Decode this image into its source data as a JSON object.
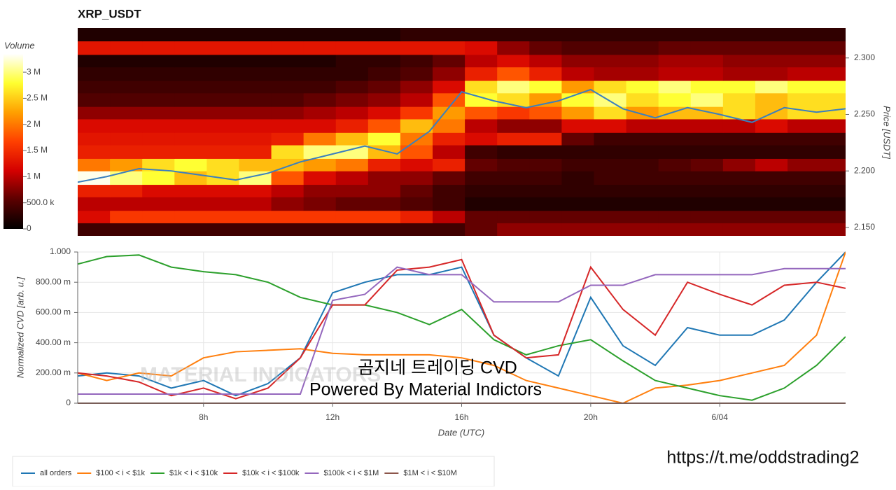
{
  "chart_data": [
    {
      "type": "heatmap",
      "title": "XRP_USDT",
      "y_label": "Price [USDT]",
      "colorbar_label": "Volume",
      "x": [
        4.6,
        5.6,
        6.6,
        7.6,
        8.6,
        9.6,
        10.6,
        11.6,
        12.6,
        13.6,
        14.6,
        15.6,
        16.6,
        17.6,
        18.6,
        19.6,
        20.6,
        21.6,
        22.6,
        23.6,
        24.6,
        25.6,
        26.6,
        27.6
      ],
      "y": [
        2.148,
        2.16,
        2.171,
        2.183,
        2.194,
        2.206,
        2.217,
        2.229,
        2.24,
        2.252,
        2.263,
        2.275,
        2.286,
        2.298,
        2.309,
        2.321
      ],
      "z": [
        [
          400000,
          400000,
          400000,
          400000,
          400000,
          400000,
          400000,
          400000,
          400000,
          400000,
          400000,
          400000,
          600000,
          800000,
          800000,
          800000,
          800000,
          800000,
          800000,
          800000,
          800000,
          800000,
          800000,
          800000
        ],
        [
          1200000,
          1600000,
          1600000,
          1600000,
          1600000,
          1600000,
          1600000,
          1600000,
          1600000,
          1600000,
          1400000,
          1000000,
          600000,
          600000,
          600000,
          600000,
          600000,
          600000,
          600000,
          600000,
          600000,
          600000,
          600000,
          600000
        ],
        [
          1000000,
          1000000,
          1000000,
          1000000,
          1000000,
          1000000,
          800000,
          700000,
          600000,
          600000,
          500000,
          400000,
          200000,
          200000,
          200000,
          200000,
          200000,
          200000,
          200000,
          200000,
          200000,
          200000,
          200000,
          200000
        ],
        [
          1400000,
          1400000,
          1200000,
          1200000,
          1200000,
          1200000,
          1000000,
          800000,
          800000,
          800000,
          600000,
          400000,
          300000,
          300000,
          300000,
          300000,
          300000,
          300000,
          300000,
          300000,
          300000,
          300000,
          300000,
          300000
        ],
        [
          3300000,
          3000000,
          2800000,
          2400000,
          2600000,
          3000000,
          1800000,
          1200000,
          1000000,
          800000,
          800000,
          600000,
          400000,
          400000,
          400000,
          300000,
          400000,
          400000,
          400000,
          400000,
          400000,
          400000,
          400000,
          400000
        ],
        [
          2000000,
          2200000,
          2600000,
          2800000,
          2600000,
          2400000,
          2400000,
          2200000,
          2000000,
          1400000,
          1200000,
          1400000,
          600000,
          500000,
          500000,
          400000,
          400000,
          400000,
          500000,
          600000,
          800000,
          1000000,
          800000,
          800000
        ],
        [
          1400000,
          1400000,
          1400000,
          1400000,
          1400000,
          1400000,
          2600000,
          3000000,
          3000000,
          2400000,
          1800000,
          1000000,
          400000,
          300000,
          300000,
          300000,
          300000,
          300000,
          300000,
          300000,
          300000,
          300000,
          300000,
          300000
        ],
        [
          1300000,
          1300000,
          1300000,
          1300000,
          1300000,
          1300000,
          1400000,
          2000000,
          2400000,
          2800000,
          2000000,
          1400000,
          1200000,
          1400000,
          1400000,
          600000,
          400000,
          400000,
          400000,
          400000,
          400000,
          400000,
          400000,
          400000
        ],
        [
          1200000,
          1200000,
          1200000,
          1200000,
          1200000,
          1200000,
          1200000,
          1200000,
          1400000,
          1800000,
          2400000,
          2000000,
          1000000,
          800000,
          800000,
          1200000,
          1200000,
          1000000,
          1000000,
          1000000,
          1000000,
          1200000,
          1000000,
          1000000
        ],
        [
          800000,
          800000,
          800000,
          800000,
          800000,
          800000,
          800000,
          900000,
          1000000,
          1200000,
          1600000,
          2200000,
          1800000,
          1600000,
          1800000,
          2200000,
          2600000,
          2200000,
          2400000,
          2400000,
          2600000,
          2400000,
          2600000,
          2600000
        ],
        [
          500000,
          500000,
          500000,
          500000,
          500000,
          500000,
          500000,
          600000,
          700000,
          800000,
          1000000,
          1800000,
          2800000,
          2600000,
          2200000,
          2800000,
          3000000,
          2600000,
          2800000,
          3000000,
          2600000,
          2400000,
          2600000,
          2600000
        ],
        [
          400000,
          400000,
          400000,
          400000,
          400000,
          400000,
          400000,
          400000,
          500000,
          600000,
          800000,
          1200000,
          2600000,
          3000000,
          2800000,
          2200000,
          2600000,
          2800000,
          3000000,
          2800000,
          2800000,
          3000000,
          2800000,
          2800000
        ],
        [
          300000,
          300000,
          300000,
          300000,
          300000,
          300000,
          300000,
          300000,
          300000,
          400000,
          500000,
          800000,
          1400000,
          1800000,
          1400000,
          1000000,
          900000,
          900000,
          1000000,
          1000000,
          900000,
          900000,
          1000000,
          1000000
        ],
        [
          200000,
          200000,
          200000,
          200000,
          200000,
          200000,
          200000,
          200000,
          300000,
          300000,
          400000,
          600000,
          1000000,
          1200000,
          1000000,
          800000,
          800000,
          800000,
          900000,
          900000,
          800000,
          800000,
          800000,
          800000
        ],
        [
          1300000,
          1300000,
          1300000,
          1300000,
          1300000,
          1300000,
          1300000,
          1300000,
          1300000,
          1300000,
          1300000,
          1300000,
          1200000,
          800000,
          600000,
          500000,
          500000,
          500000,
          600000,
          600000,
          600000,
          600000,
          600000,
          600000
        ],
        [
          200000,
          200000,
          200000,
          200000,
          200000,
          200000,
          200000,
          200000,
          200000,
          200000,
          300000,
          300000,
          300000,
          300000,
          300000,
          300000,
          300000,
          300000,
          300000,
          300000,
          300000,
          300000,
          300000,
          300000
        ]
      ],
      "xlim": [
        4.1,
        27.9
      ],
      "ylim": [
        2.1425,
        2.3265
      ],
      "yticks": [
        {
          "value": 2.15,
          "label": "2.150"
        },
        {
          "value": 2.2,
          "label": "2.200"
        },
        {
          "value": 2.25,
          "label": "2.250"
        },
        {
          "value": 2.3,
          "label": "2.300"
        }
      ],
      "zlim": [
        0,
        3350000
      ],
      "zticks": [
        0,
        {
          "value": 500000,
          "label": "500.0 k"
        },
        {
          "value": 1000000,
          "label": "1 M"
        },
        {
          "value": 1500000,
          "label": "1.5 M"
        },
        {
          "value": 2000000,
          "label": "2 M"
        },
        {
          "value": 2500000,
          "label": "2.5 M"
        },
        {
          "value": 3000000,
          "label": "3 M"
        }
      ],
      "colormap": [
        "#000000",
        "#5a0000",
        "#d40000",
        "#ff4000",
        "#ffa000",
        "#ffff30",
        "#ffffff"
      ],
      "price_line": {
        "color": "#3a7fbf",
        "x": [
          4.1,
          5,
          6,
          7,
          8,
          9,
          10,
          11,
          12,
          13,
          14,
          15,
          16,
          17,
          18,
          19,
          20,
          21,
          22,
          23,
          24,
          25,
          26,
          27,
          27.9
        ],
        "values": [
          2.19,
          2.195,
          2.202,
          2.2,
          2.196,
          2.192,
          2.198,
          2.208,
          2.215,
          2.222,
          2.215,
          2.235,
          2.27,
          2.262,
          2.256,
          2.262,
          2.272,
          2.255,
          2.247,
          2.256,
          2.25,
          2.243,
          2.256,
          2.252,
          2.255
        ]
      }
    },
    {
      "type": "line",
      "x_label": "Date (UTC)",
      "y_label": "Normalized CVD [arb. u.]",
      "x": [
        4.1,
        5,
        6,
        7,
        8,
        9,
        10,
        11,
        12,
        13,
        14,
        15,
        16,
        17,
        18,
        19,
        20,
        21,
        22,
        23,
        24,
        25,
        26,
        27,
        27.9
      ],
      "series": [
        {
          "name": "all orders",
          "color": "#1f77b4",
          "values": [
            0.18,
            0.2,
            0.18,
            0.1,
            0.15,
            0.05,
            0.13,
            0.3,
            0.73,
            0.8,
            0.85,
            0.85,
            0.9,
            0.45,
            0.3,
            0.18,
            0.7,
            0.38,
            0.25,
            0.5,
            0.45,
            0.45,
            0.55,
            0.8,
            1.0
          ]
        },
        {
          "name": "$100 < i < $1k",
          "color": "#ff7f0e",
          "values": [
            0.2,
            0.15,
            0.2,
            0.18,
            0.3,
            0.34,
            0.35,
            0.36,
            0.33,
            0.32,
            0.32,
            0.32,
            0.3,
            0.25,
            0.15,
            0.1,
            0.05,
            0.0,
            0.1,
            0.12,
            0.15,
            0.2,
            0.25,
            0.45,
            1.0
          ]
        },
        {
          "name": "$1k < i < $10k",
          "color": "#2ca02c",
          "values": [
            0.92,
            0.97,
            0.98,
            0.9,
            0.87,
            0.85,
            0.8,
            0.7,
            0.65,
            0.65,
            0.6,
            0.52,
            0.62,
            0.42,
            0.32,
            0.38,
            0.42,
            0.28,
            0.15,
            0.1,
            0.05,
            0.02,
            0.1,
            0.25,
            0.44
          ]
        },
        {
          "name": "$10k < i < $100k",
          "color": "#d62728",
          "values": [
            0.2,
            0.18,
            0.14,
            0.05,
            0.1,
            0.03,
            0.1,
            0.3,
            0.65,
            0.65,
            0.88,
            0.9,
            0.95,
            0.45,
            0.3,
            0.32,
            0.9,
            0.62,
            0.45,
            0.8,
            0.72,
            0.65,
            0.78,
            0.8,
            0.76
          ]
        },
        {
          "name": "$100k < i < $1M",
          "color": "#9467bd",
          "values": [
            0.06,
            0.06,
            0.06,
            0.06,
            0.06,
            0.06,
            0.06,
            0.06,
            0.68,
            0.72,
            0.9,
            0.85,
            0.85,
            0.67,
            0.67,
            0.67,
            0.78,
            0.78,
            0.85,
            0.85,
            0.85,
            0.85,
            0.89,
            0.89,
            0.89
          ]
        },
        {
          "name": "$1M < i < $10M",
          "color": "#8c564b",
          "values": [
            0,
            0,
            0,
            0,
            0,
            0,
            0,
            0,
            0,
            0,
            0,
            0,
            0,
            0,
            0,
            0,
            0,
            0,
            0,
            0,
            0,
            0,
            0,
            0,
            0
          ]
        }
      ],
      "xlim": [
        4.1,
        27.9
      ],
      "xticks": [
        {
          "value": 8,
          "label": "8h"
        },
        {
          "value": 12,
          "label": "12h"
        },
        {
          "value": 16,
          "label": "16h"
        },
        {
          "value": 20,
          "label": "20h"
        },
        {
          "value": 24,
          "label": "6/04"
        }
      ],
      "ylim": [
        0,
        1
      ],
      "yticks": [
        0,
        {
          "value": 0.2,
          "label": "200.00 m"
        },
        {
          "value": 0.4,
          "label": "400.00 m"
        },
        {
          "value": 0.6,
          "label": "600.00 m"
        },
        {
          "value": 0.8,
          "label": "800.00 m"
        },
        {
          "value": 1,
          "label": "1.000"
        }
      ],
      "grid": true,
      "legend": "bottom-left",
      "annotations": [
        "MATERIAL INDICATORS",
        "곰지네 트레이딩 CVD",
        "Powered By Material Indictors"
      ]
    }
  ],
  "footer_link": "https://t.me/oddstrading2"
}
